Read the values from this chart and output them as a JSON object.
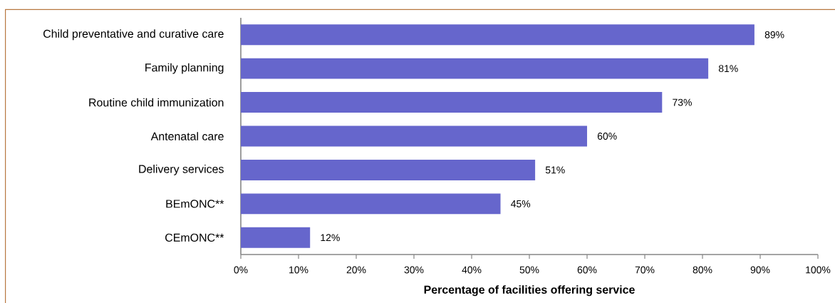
{
  "chart_data": {
    "type": "bar",
    "orientation": "horizontal",
    "categories": [
      "Child preventative and curative care",
      "Family planning",
      "Routine child immunization",
      "Antenatal care",
      "Delivery services",
      "BEmONC**",
      "CEmONC**"
    ],
    "values": [
      89,
      81,
      73,
      60,
      51,
      45,
      12
    ],
    "value_labels": [
      "89%",
      "81%",
      "73%",
      "60%",
      "51%",
      "45%",
      "12%"
    ],
    "color": "#6666cc",
    "xlabel": "Percentage of facilities offering service",
    "xlim": [
      0,
      100
    ],
    "xticks": [
      {
        "value": 0,
        "label": "0%"
      },
      {
        "value": 10,
        "label": "10%"
      },
      {
        "value": 20,
        "label": "20%"
      },
      {
        "value": 30,
        "label": "30%"
      },
      {
        "value": 40,
        "label": "40%"
      },
      {
        "value": 50,
        "label": "50%"
      },
      {
        "value": 60,
        "label": "60%"
      },
      {
        "value": 70,
        "label": "70%"
      },
      {
        "value": 80,
        "label": "80%"
      },
      {
        "value": 90,
        "label": "90%"
      },
      {
        "value": 100,
        "label": "100%"
      }
    ]
  }
}
